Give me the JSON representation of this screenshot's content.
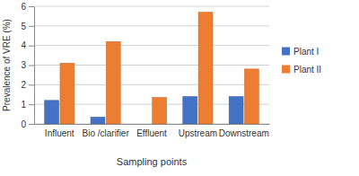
{
  "chart_data": {
    "type": "bar",
    "x_label": "Sampling points",
    "y_label": "Prevalence of VRE (%)",
    "categories": [
      "Influent",
      "Bio /clarifier",
      "Effluent",
      "Upstream",
      "Downstream"
    ],
    "series": [
      {
        "name": "Plant I",
        "color": "#4472c4",
        "values": [
          1.2,
          0.35,
          0,
          1.4,
          1.4
        ]
      },
      {
        "name": "Plant II",
        "color": "#ed7d31",
        "values": [
          3.1,
          4.2,
          1.35,
          5.7,
          2.8
        ]
      }
    ],
    "ylim": [
      0,
      6
    ],
    "yticks": [
      0,
      1,
      2,
      3,
      4,
      5,
      6
    ],
    "grid": true,
    "legend": "right"
  }
}
